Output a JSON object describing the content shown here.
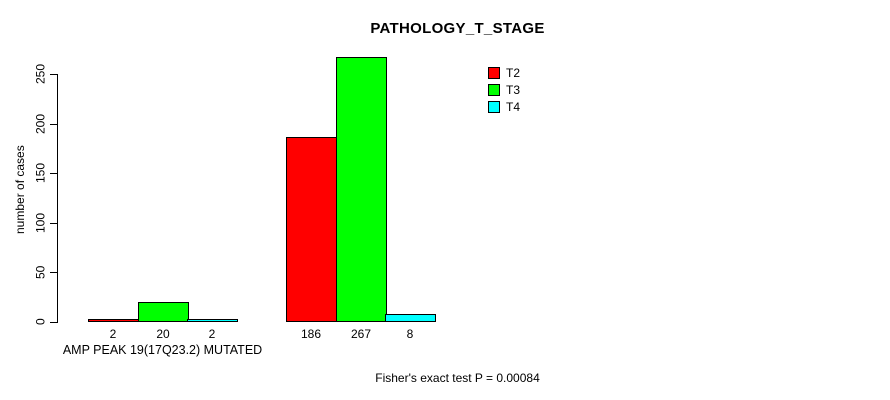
{
  "chart_data": {
    "type": "bar",
    "title": "PATHOLOGY_T_STAGE",
    "xlabel": "",
    "ylabel": "number of cases",
    "categories": [
      "AMP PEAK 19(17Q23.2) MUTATED",
      ""
    ],
    "series": [
      {
        "name": "T2",
        "color": "#FF0000",
        "values": [
          2,
          186
        ]
      },
      {
        "name": "T3",
        "color": "#00FF00",
        "values": [
          20,
          267
        ]
      },
      {
        "name": "T4",
        "color": "#00FFFF",
        "values": [
          2,
          8
        ]
      }
    ],
    "bar_value_labels_shown": true,
    "yticks": [
      0,
      50,
      100,
      150,
      200,
      250
    ],
    "ylim": [
      0,
      267
    ],
    "grid": false,
    "legend_position": "top-right",
    "annotation": "Fisher's exact test P = 0.00084",
    "colors": {
      "background": "#FFFFFF",
      "axis": "#000000",
      "text": "#000000"
    }
  }
}
